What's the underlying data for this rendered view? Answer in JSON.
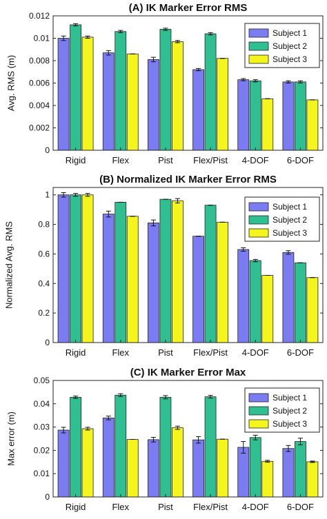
{
  "chart_data": [
    {
      "type": "bar",
      "title": "(A)   IK Marker Error RMS",
      "ylabel": "Avg. RMS (m)",
      "xlabel": "",
      "categories": [
        "Rigid",
        "Flex",
        "Pist",
        "Flex/Pist",
        "4-DOF",
        "6-DOF"
      ],
      "ylim": [
        0,
        0.012
      ],
      "yticks": [
        "0",
        "0.002",
        "0.004",
        "0.006",
        "0.008",
        "0.01",
        "0.012"
      ],
      "grid": false,
      "legend_position": "top-right",
      "series": [
        {
          "name": "Subject 1",
          "color": "#7b7cf2",
          "values": [
            0.01,
            0.0087,
            0.0081,
            0.0072,
            0.0063,
            0.0061
          ],
          "errors": [
            0.0002,
            0.0002,
            0.0002,
            0.0001,
            0.0001,
            0.0001
          ]
        },
        {
          "name": "Subject 2",
          "color": "#2fbf91",
          "values": [
            0.0112,
            0.0106,
            0.0108,
            0.0104,
            0.0062,
            0.0061
          ],
          "errors": [
            0.0001,
            0.0001,
            0.0001,
            0.0001,
            0.0001,
            0.0001
          ]
        },
        {
          "name": "Subject 3",
          "color": "#f5f51e",
          "values": [
            0.0101,
            0.0086,
            0.0097,
            0.0082,
            0.0046,
            0.0045
          ],
          "errors": [
            0.0001,
            0.0,
            0.0001,
            0.0,
            0.0,
            0.0
          ]
        }
      ]
    },
    {
      "type": "bar",
      "title": "(B)   Normalized IK Marker Error RMS",
      "ylabel": "Normalized Avg. RMS",
      "xlabel": "",
      "categories": [
        "Rigid",
        "Flex",
        "Pist",
        "Flex/Pist",
        "4-DOF",
        "6-DOF"
      ],
      "ylim": [
        0,
        1.05
      ],
      "yticks": [
        "0",
        "0.2",
        "0.4",
        "0.6",
        "0.8",
        "1"
      ],
      "ytick_values": [
        0,
        0.2,
        0.4,
        0.6,
        0.8,
        1
      ],
      "grid": false,
      "legend_position": "top-right",
      "series": [
        {
          "name": "Subject 1",
          "color": "#7b7cf2",
          "values": [
            1.0,
            0.87,
            0.81,
            0.72,
            0.63,
            0.61
          ],
          "errors": [
            0.015,
            0.02,
            0.02,
            0.0,
            0.012,
            0.012
          ]
        },
        {
          "name": "Subject 2",
          "color": "#2fbf91",
          "values": [
            1.0,
            0.95,
            0.97,
            0.93,
            0.555,
            0.54
          ],
          "errors": [
            0.01,
            0.0,
            0.0,
            0.0,
            0.008,
            0.0
          ]
        },
        {
          "name": "Subject 3",
          "color": "#f5f51e",
          "values": [
            1.0,
            0.855,
            0.96,
            0.815,
            0.455,
            0.44
          ],
          "errors": [
            0.01,
            0.0,
            0.015,
            0.0,
            0.0,
            0.0
          ]
        }
      ]
    },
    {
      "type": "bar",
      "title": "(C)   IK Marker Error Max",
      "ylabel": "Max error (m)",
      "xlabel": "",
      "categories": [
        "Rigid",
        "Flex",
        "Pist",
        "Flex/Pist",
        "4-DOF",
        "6-DOF"
      ],
      "ylim": [
        0,
        0.05
      ],
      "yticks": [
        "0",
        "0.01",
        "0.02",
        "0.03",
        "0.04",
        "0.05"
      ],
      "grid": false,
      "legend_position": "top-right",
      "series": [
        {
          "name": "Subject 1",
          "color": "#7b7cf2",
          "values": [
            0.0287,
            0.0339,
            0.0246,
            0.0245,
            0.0213,
            0.0208
          ],
          "errors": [
            0.0012,
            0.0008,
            0.001,
            0.0014,
            0.0025,
            0.0013
          ]
        },
        {
          "name": "Subject 2",
          "color": "#2fbf91",
          "values": [
            0.0428,
            0.0437,
            0.0428,
            0.043,
            0.0255,
            0.0238
          ],
          "errors": [
            0.0005,
            0.0006,
            0.0007,
            0.0006,
            0.001,
            0.0014
          ]
        },
        {
          "name": "Subject 3",
          "color": "#f5f51e",
          "values": [
            0.0293,
            0.0247,
            0.0297,
            0.0248,
            0.0153,
            0.0151
          ],
          "errors": [
            0.0006,
            0.0,
            0.0007,
            0.0,
            0.0004,
            0.0003
          ]
        }
      ]
    }
  ]
}
